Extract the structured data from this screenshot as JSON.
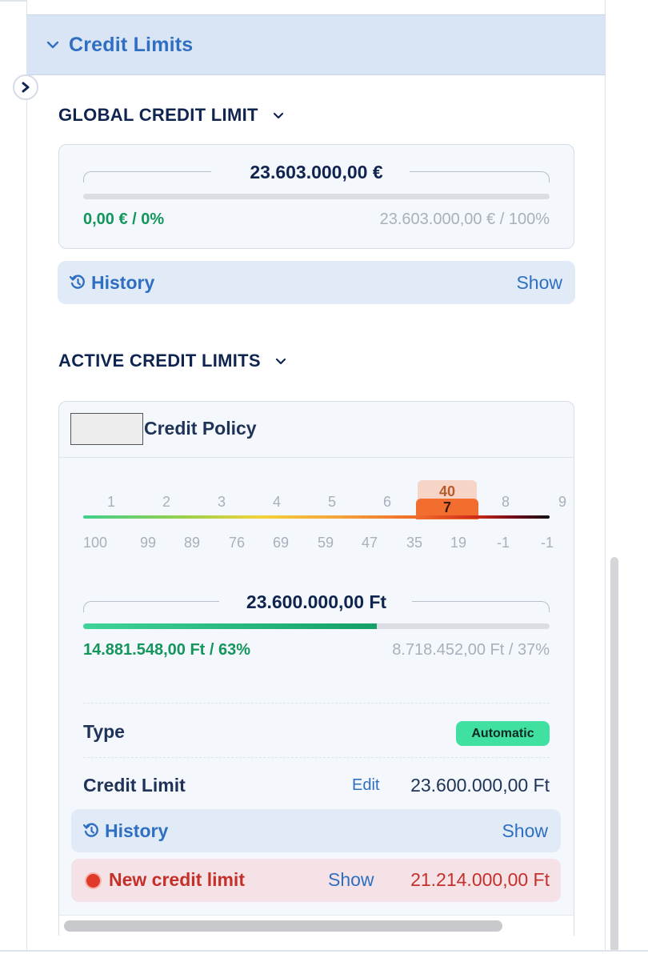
{
  "section": {
    "title": "Credit Limits"
  },
  "global": {
    "heading": "GLOBAL CREDIT LIMIT",
    "total": "23.603.000,00 €",
    "used": "0,00 € / 0%",
    "available": "23.603.000,00 € / 100%",
    "used_fraction": 0.0,
    "history_label": "History",
    "history_show": "Show"
  },
  "active": {
    "heading": "ACTIVE CREDIT LIMITS",
    "policy_title": "Credit Policy",
    "scale": {
      "grades": [
        "1",
        "2",
        "3",
        "4",
        "5",
        "6",
        "7",
        "8",
        "9"
      ],
      "scores": [
        "100",
        "99",
        "89",
        "76",
        "69",
        "59",
        "47",
        "35",
        "19",
        "-1",
        "-1"
      ],
      "current_score": "40",
      "current_grade": "7"
    },
    "total": "23.600.000,00 Ft",
    "used": "14.881.548,00 Ft / 63%",
    "available": "8.718.452,00 Ft / 37%",
    "used_fraction": 0.63,
    "type_label": "Type",
    "type_badge": "Automatic",
    "limit_label": "Credit Limit",
    "edit_label": "Edit",
    "limit_value": "23.600.000,00 Ft",
    "history_label": "History",
    "history_show": "Show",
    "new_limit_label": "New credit limit",
    "new_limit_show": "Show",
    "new_limit_value": "21.214.000,00 Ft"
  },
  "colors": {
    "accent": "#2f6fc2",
    "navy": "#0f2550",
    "green": "#14955c",
    "badge": "#3fe0a0",
    "red": "#c5302a",
    "marker": "#f26e2e"
  },
  "icons": [
    "chevron-down-icon",
    "chevron-right-icon",
    "history-icon",
    "status-dot-icon"
  ]
}
